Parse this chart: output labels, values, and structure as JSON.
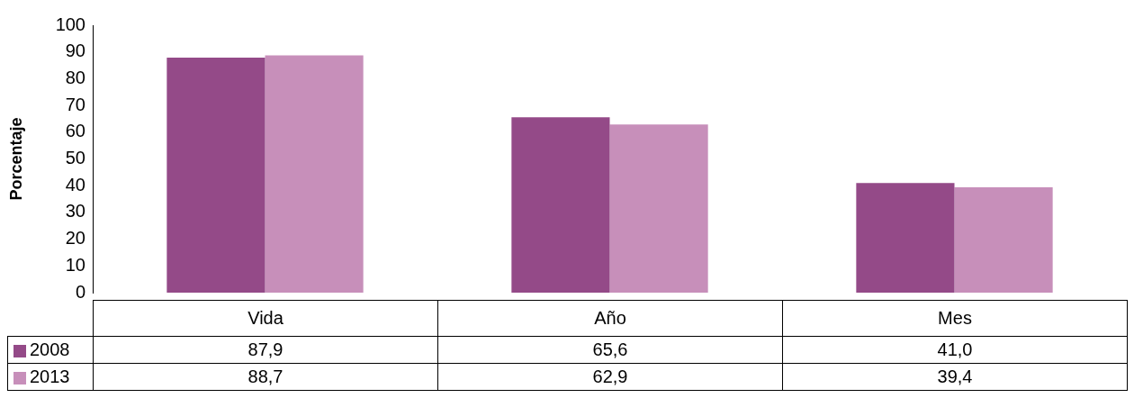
{
  "chart_data": {
    "type": "bar",
    "ylabel": "Porcentaje",
    "categories": [
      "Vida",
      "Año",
      "Mes"
    ],
    "series": [
      {
        "name": "2008",
        "color": "#944a88",
        "values": [
          87.9,
          65.6,
          41.0
        ],
        "value_labels": [
          "87,9",
          "65,6",
          "41,0"
        ]
      },
      {
        "name": "2013",
        "color": "#c78fba",
        "values": [
          88.7,
          62.9,
          39.4
        ],
        "value_labels": [
          "88,7",
          "62,9",
          "39,4"
        ]
      }
    ],
    "ylim": [
      0,
      100
    ],
    "yticks": [
      0,
      10,
      20,
      30,
      40,
      50,
      60,
      70,
      80,
      90,
      100
    ],
    "grid": false,
    "legend": "bottom"
  }
}
